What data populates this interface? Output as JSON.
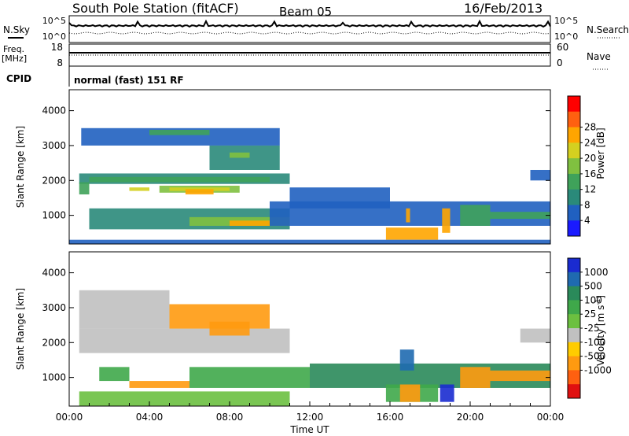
{
  "header": {
    "title": "South Pole Station (fitACF)",
    "beam": "Beam 05",
    "date": "16/Feb/2013"
  },
  "labels": {
    "nsky": "N.Sky",
    "nsearch": "N.Search",
    "freq_line1": "Freq.",
    "freq_line2": "[MHz]",
    "nave": "Nave",
    "cpid": "CPID",
    "cpid_value": "normal (fast) 151 RF",
    "noise_tick_high": "10^5",
    "noise_tick_low": "10^0",
    "freq_tick_high": "18",
    "freq_tick_low": "8",
    "nave_tick_high": "60",
    "nave_tick_low": "0"
  },
  "chart_data": [
    {
      "type": "heatmap",
      "name": "power",
      "ylabel": "Slant Range [km]",
      "ylim": [
        180,
        4600
      ],
      "yticks": [
        1000,
        2000,
        3000,
        4000
      ],
      "xlim": [
        0,
        24
      ],
      "colorbar": {
        "label": "Power [dB]",
        "ticks": [
          "4",
          "8",
          "12",
          "16",
          "20",
          "24",
          "28"
        ],
        "colors": [
          "#1a1aff",
          "#2060c0",
          "#2a8a7a",
          "#3fa25a",
          "#80c040",
          "#d4d020",
          "#ffa500",
          "#ff6010",
          "#ff0000"
        ]
      },
      "regions": [
        {
          "t0": 0.6,
          "t1": 10.5,
          "r0": 3000,
          "r1": 3500,
          "level": 1
        },
        {
          "t0": 4.0,
          "t1": 7.0,
          "r0": 3300,
          "r1": 3450,
          "level": 3
        },
        {
          "t0": 7.0,
          "t1": 10.5,
          "r0": 2300,
          "r1": 3000,
          "level": 2
        },
        {
          "t0": 8.0,
          "t1": 9.0,
          "r0": 2650,
          "r1": 2800,
          "level": 4
        },
        {
          "t0": 0.5,
          "t1": 11.0,
          "r0": 1900,
          "r1": 2200,
          "level": 2
        },
        {
          "t0": 1.0,
          "t1": 10.0,
          "r0": 1950,
          "r1": 2100,
          "level": 3
        },
        {
          "t0": 0.5,
          "t1": 1.0,
          "r0": 1600,
          "r1": 1950,
          "level": 3
        },
        {
          "t0": 4.5,
          "t1": 8.5,
          "r0": 1650,
          "r1": 1850,
          "level": 4
        },
        {
          "t0": 5.0,
          "t1": 8.0,
          "r0": 1700,
          "r1": 1800,
          "level": 5
        },
        {
          "t0": 5.8,
          "t1": 7.2,
          "r0": 1600,
          "r1": 1750,
          "level": 6
        },
        {
          "t0": 3.0,
          "t1": 4.0,
          "r0": 1700,
          "r1": 1800,
          "level": 5
        },
        {
          "t0": 1.0,
          "t1": 11.0,
          "r0": 600,
          "r1": 1200,
          "level": 2
        },
        {
          "t0": 6.0,
          "t1": 11.0,
          "r0": 700,
          "r1": 950,
          "level": 4
        },
        {
          "t0": 8.0,
          "t1": 10.0,
          "r0": 700,
          "r1": 850,
          "level": 6
        },
        {
          "t0": 10.0,
          "t1": 24.0,
          "r0": 700,
          "r1": 1400,
          "level": 1
        },
        {
          "t0": 11.0,
          "t1": 16.0,
          "r0": 1200,
          "r1": 1800,
          "level": 1
        },
        {
          "t0": 15.8,
          "t1": 18.4,
          "r0": 300,
          "r1": 650,
          "level": 6
        },
        {
          "t0": 16.8,
          "t1": 17.0,
          "r0": 800,
          "r1": 1200,
          "level": 6
        },
        {
          "t0": 18.6,
          "t1": 19.0,
          "r0": 500,
          "r1": 1200,
          "level": 6
        },
        {
          "t0": 19.5,
          "t1": 21.0,
          "r0": 700,
          "r1": 1300,
          "level": 3
        },
        {
          "t0": 21.0,
          "t1": 24.0,
          "r0": 900,
          "r1": 1100,
          "level": 3
        },
        {
          "t0": 0.0,
          "t1": 24.0,
          "r0": 180,
          "r1": 300,
          "level": 1
        },
        {
          "t0": 23.0,
          "t1": 24.0,
          "r0": 2000,
          "r1": 2300,
          "level": 1
        }
      ]
    },
    {
      "type": "heatmap",
      "name": "velocity",
      "ylabel": "Slant Range [km]",
      "xlabel": "Time UT",
      "ylim": [
        180,
        4600
      ],
      "yticks": [
        1000,
        2000,
        3000,
        4000
      ],
      "xlim": [
        0,
        24
      ],
      "xticks": [
        "00:00",
        "04:00",
        "08:00",
        "12:00",
        "16:00",
        "20:00",
        "00:00"
      ],
      "colorbar": {
        "label": "Velocity [m s-1]",
        "label_main": "Velocity [m s",
        "label_exp": "-1",
        "label_end": "]",
        "ticks": [
          "1000",
          "500",
          "100",
          "25",
          "-25",
          "-100",
          "-500",
          "-1000"
        ],
        "colors": [
          "#1a2bd0",
          "#1f6ab0",
          "#2a8a5a",
          "#3fa84a",
          "#6cc040",
          "#c0c0c0",
          "#ffcc00",
          "#ff9a10",
          "#ff6010",
          "#e01010"
        ]
      },
      "regions": [
        {
          "t0": 0.5,
          "t1": 11.0,
          "r0": 1700,
          "r1": 2400,
          "level": 5
        },
        {
          "t0": 0.5,
          "t1": 5.0,
          "r0": 2400,
          "r1": 3500,
          "level": 5
        },
        {
          "t0": 5.0,
          "t1": 10.0,
          "r0": 2400,
          "r1": 3100,
          "level": 7
        },
        {
          "t0": 7.0,
          "t1": 9.0,
          "r0": 2200,
          "r1": 2600,
          "level": 7
        },
        {
          "t0": 1.5,
          "t1": 3.0,
          "r0": 900,
          "r1": 1300,
          "level": 3
        },
        {
          "t0": 3.0,
          "t1": 6.0,
          "r0": 700,
          "r1": 900,
          "level": 7
        },
        {
          "t0": 6.0,
          "t1": 12.0,
          "r0": 700,
          "r1": 1300,
          "level": 3
        },
        {
          "t0": 12.0,
          "t1": 24.0,
          "r0": 700,
          "r1": 1400,
          "level": 2
        },
        {
          "t0": 15.8,
          "t1": 18.4,
          "r0": 300,
          "r1": 800,
          "level": 3
        },
        {
          "t0": 16.5,
          "t1": 17.5,
          "r0": 300,
          "r1": 800,
          "level": 7
        },
        {
          "t0": 18.5,
          "t1": 19.2,
          "r0": 300,
          "r1": 800,
          "level": 0
        },
        {
          "t0": 19.5,
          "t1": 21.0,
          "r0": 700,
          "r1": 1300,
          "level": 7
        },
        {
          "t0": 21.0,
          "t1": 24.0,
          "r0": 900,
          "r1": 1200,
          "level": 7
        },
        {
          "t0": 16.5,
          "t1": 17.2,
          "r0": 1200,
          "r1": 1800,
          "level": 1
        },
        {
          "t0": 22.5,
          "t1": 24.0,
          "r0": 2000,
          "r1": 2400,
          "level": 5
        },
        {
          "t0": 0.5,
          "t1": 11.0,
          "r0": 180,
          "r1": 600,
          "level": 4
        }
      ]
    }
  ]
}
